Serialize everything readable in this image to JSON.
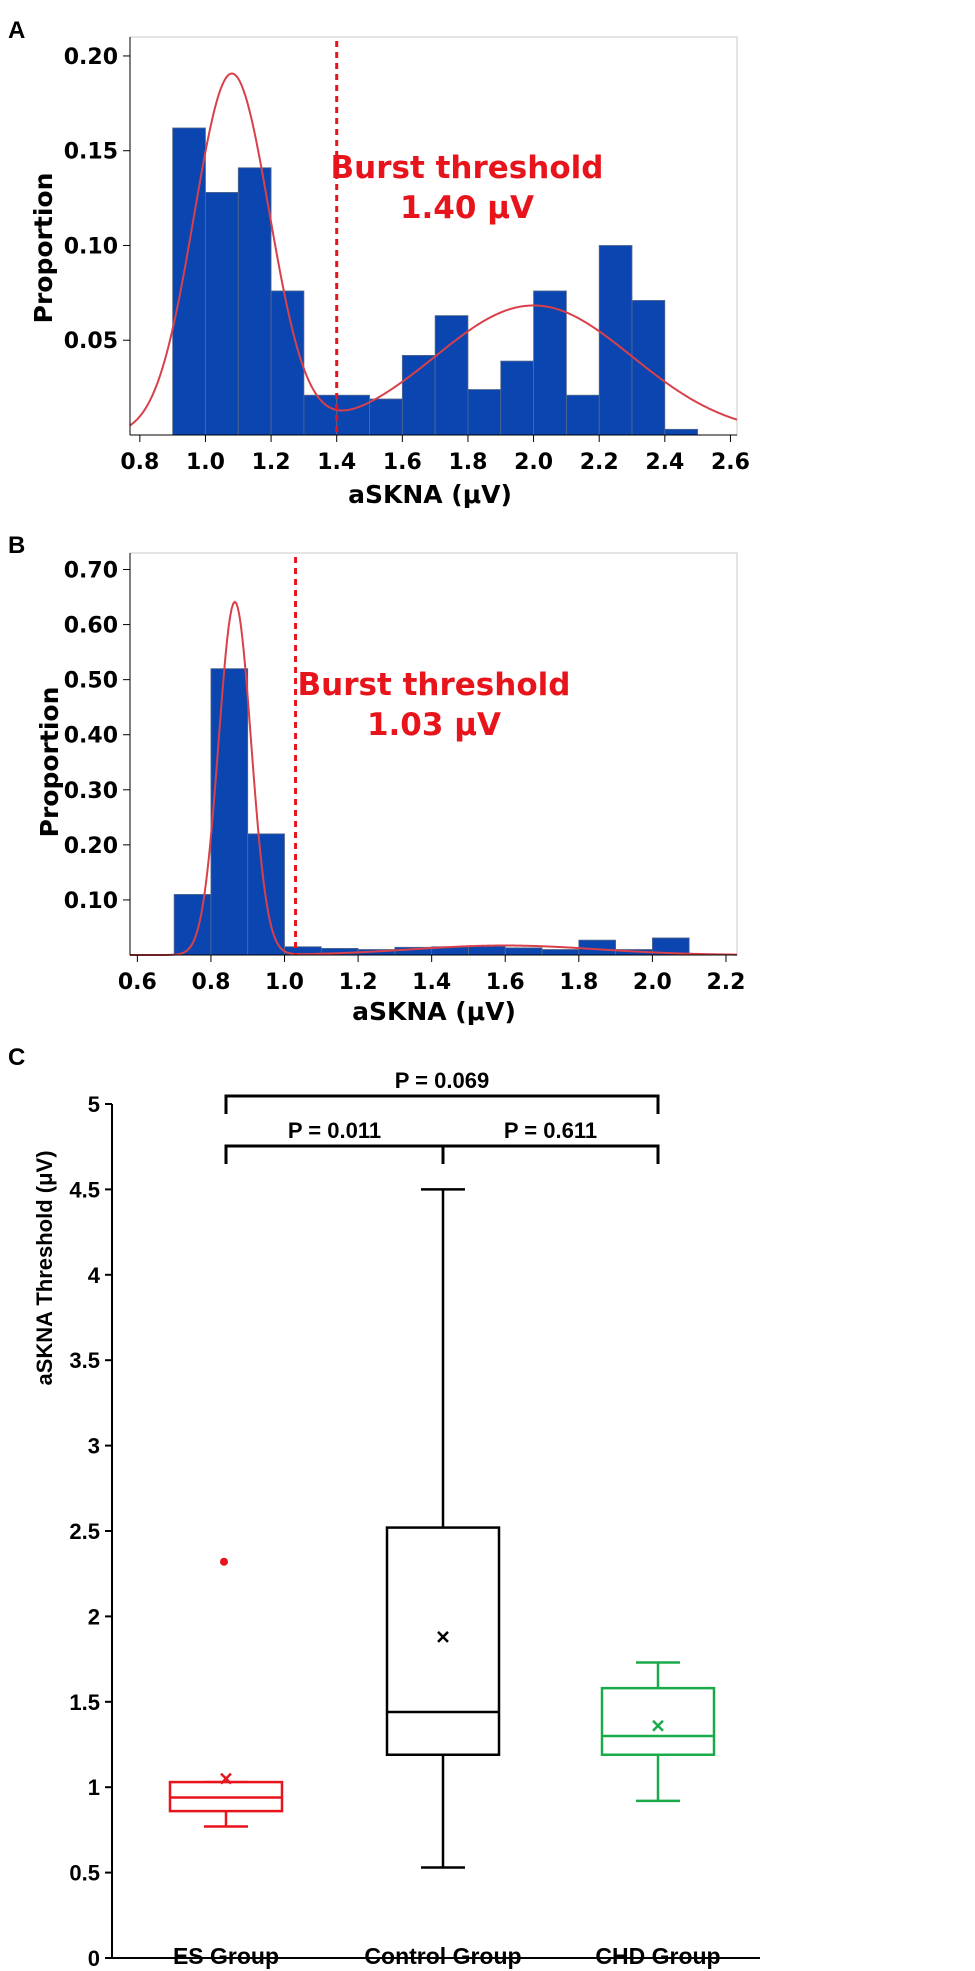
{
  "panels": {
    "A": "A",
    "B": "B",
    "C": "C"
  },
  "chart_data": [
    {
      "panel": "A",
      "type": "bar",
      "xlabel": "aSKNA (μV)",
      "ylabel": "Proportion",
      "xlim": [
        0.77,
        2.62
      ],
      "ylim": [
        0,
        0.21
      ],
      "xticks": [
        "0.8",
        "1.0",
        "1.2",
        "1.4",
        "1.6",
        "1.8",
        "2.0",
        "2.2",
        "2.4",
        "2.6"
      ],
      "yticks": [
        "0.05",
        "0.10",
        "0.15",
        "0.20"
      ],
      "bin_width": 0.1,
      "bins": [
        {
          "x0": 0.9,
          "value": 0.162
        },
        {
          "x0": 1.0,
          "value": 0.128
        },
        {
          "x0": 1.1,
          "value": 0.141
        },
        {
          "x0": 1.2,
          "value": 0.076
        },
        {
          "x0": 1.3,
          "value": 0.021
        },
        {
          "x0": 1.4,
          "value": 0.021
        },
        {
          "x0": 1.5,
          "value": 0.019
        },
        {
          "x0": 1.6,
          "value": 0.042
        },
        {
          "x0": 1.7,
          "value": 0.063
        },
        {
          "x0": 1.8,
          "value": 0.024
        },
        {
          "x0": 1.9,
          "value": 0.039
        },
        {
          "x0": 2.0,
          "value": 0.076
        },
        {
          "x0": 2.1,
          "value": 0.021
        },
        {
          "x0": 2.2,
          "value": 0.1
        },
        {
          "x0": 2.3,
          "value": 0.071
        },
        {
          "x0": 2.4,
          "value": 0.003
        }
      ],
      "fit_curve": {
        "components": [
          {
            "weight": 0.0548,
            "mean": 1.08,
            "sd": 0.115
          },
          {
            "weight": 0.0514,
            "mean": 2.0,
            "sd": 0.3
          }
        ]
      },
      "threshold": {
        "x": 1.4,
        "line1": "Burst threshold",
        "line2": "1.40 μV"
      },
      "colors": {
        "bar": "#0a45b0",
        "curve": "#d9404a",
        "threshold": "#e8141c"
      }
    },
    {
      "panel": "B",
      "type": "bar",
      "xlabel": "aSKNA (μV)",
      "ylabel": "Proportion",
      "xlim": [
        0.58,
        2.23
      ],
      "ylim": [
        0,
        0.73
      ],
      "xticks": [
        "0.6",
        "0.8",
        "1.0",
        "1.2",
        "1.4",
        "1.6",
        "1.8",
        "2.0",
        "2.2"
      ],
      "yticks": [
        "0.10",
        "0.20",
        "0.30",
        "0.40",
        "0.50",
        "0.60",
        "0.70"
      ],
      "bin_width": 0.1,
      "bins": [
        {
          "x0": 0.7,
          "value": 0.11
        },
        {
          "x0": 0.8,
          "value": 0.52
        },
        {
          "x0": 0.9,
          "value": 0.22
        },
        {
          "x0": 1.0,
          "value": 0.015
        },
        {
          "x0": 1.1,
          "value": 0.012
        },
        {
          "x0": 1.2,
          "value": 0.01
        },
        {
          "x0": 1.3,
          "value": 0.014
        },
        {
          "x0": 1.4,
          "value": 0.015
        },
        {
          "x0": 1.5,
          "value": 0.016
        },
        {
          "x0": 1.6,
          "value": 0.013
        },
        {
          "x0": 1.7,
          "value": 0.01
        },
        {
          "x0": 1.8,
          "value": 0.027
        },
        {
          "x0": 1.9,
          "value": 0.01
        },
        {
          "x0": 2.0,
          "value": 0.031
        }
      ],
      "fit_curve": {
        "components": [
          {
            "weight": 0.0707,
            "mean": 0.865,
            "sd": 0.044
          },
          {
            "weight": 0.0108,
            "mean": 1.6,
            "sd": 0.25
          }
        ]
      },
      "threshold": {
        "x": 1.03,
        "line1": "Burst threshold",
        "line2": "1.03 μV"
      },
      "colors": {
        "bar": "#0a45b0",
        "curve": "#d9404a",
        "threshold": "#e8141c"
      }
    },
    {
      "panel": "C",
      "type": "box",
      "ylabel": "aSKNA Threshold (μV)",
      "ylim": [
        0,
        5
      ],
      "yticks": [
        "0",
        "0.5",
        "1",
        "1.5",
        "2",
        "2.5",
        "3",
        "3.5",
        "4",
        "4.5",
        "5"
      ],
      "groups": [
        {
          "name": "ES Group",
          "min": 0.77,
          "q1": 0.86,
          "median": 0.94,
          "q3": 1.03,
          "max": 1.03,
          "mean": 1.05,
          "outliers": [
            2.32
          ],
          "color": "#e8141c"
        },
        {
          "name": "Control Group",
          "min": 0.53,
          "q1": 1.19,
          "median": 1.44,
          "q3": 2.52,
          "max": 4.5,
          "mean": 1.88,
          "outliers": [],
          "color": "#000000"
        },
        {
          "name": "CHD Group",
          "min": 0.92,
          "q1": 1.19,
          "median": 1.3,
          "q3": 1.58,
          "max": 1.73,
          "mean": 1.36,
          "outliers": [],
          "color": "#1aaa4a"
        }
      ],
      "comparisons": [
        {
          "label": "P = 0.011",
          "from": 0,
          "to": 1
        },
        {
          "label": "P = 0.611",
          "from": 1,
          "to": 2
        },
        {
          "label": "P = 0.069",
          "from": 0,
          "to": 2
        }
      ]
    }
  ]
}
